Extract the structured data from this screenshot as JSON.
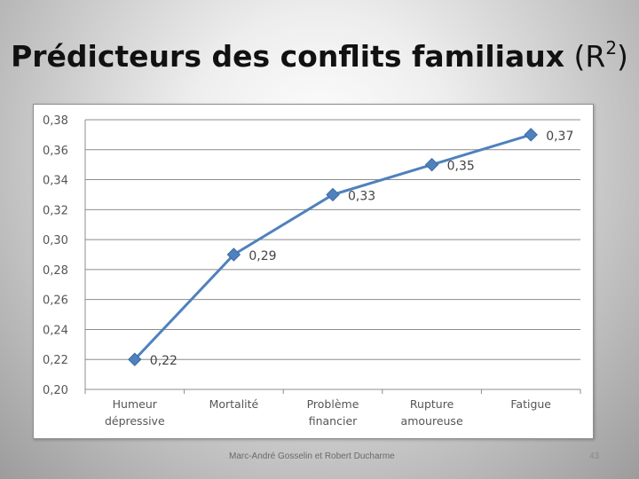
{
  "slide": {
    "title_main": "Prédicteurs des conflits familiaux",
    "title_paren_open": "(R",
    "title_sup": "2",
    "title_paren_close": ")",
    "footer": "Marc-André Gosselin et Robert Ducharme",
    "page_number": "43"
  },
  "chart_data": {
    "type": "line",
    "title": "",
    "xlabel": "",
    "ylabel": "",
    "ylim": [
      0.2,
      0.38
    ],
    "y_ticks": [
      "0,20",
      "0,22",
      "0,24",
      "0,26",
      "0,28",
      "0,30",
      "0,32",
      "0,34",
      "0,36",
      "0,38"
    ],
    "categories": [
      [
        "Humeur",
        "dépressive"
      ],
      [
        "Mortalité"
      ],
      [
        "Problème",
        "financier"
      ],
      [
        "Rupture",
        "amoureuse"
      ],
      [
        "Fatigue"
      ]
    ],
    "series": [
      {
        "values": [
          0.22,
          0.29,
          0.33,
          0.35,
          0.37
        ],
        "labels": [
          "0,22",
          "0,29",
          "0,33",
          "0,35",
          "0,37"
        ]
      }
    ],
    "marker": "diamond",
    "line_color": "#4f81bd",
    "grid": "horizontal",
    "legend": "none"
  }
}
